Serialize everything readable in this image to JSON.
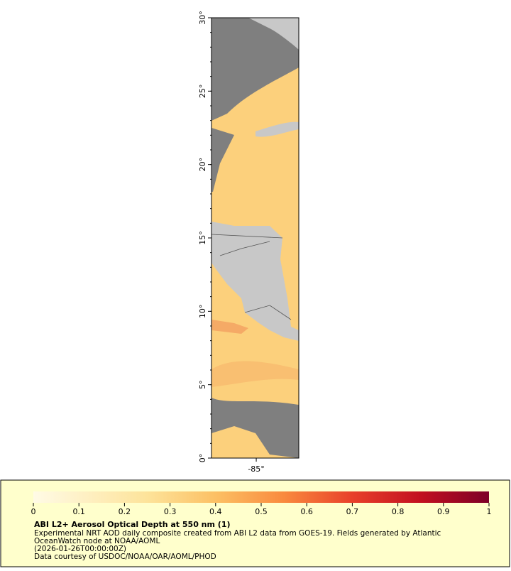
{
  "map": {
    "ylim": [
      0,
      30
    ],
    "yticks": [
      {
        "value": 0,
        "label": "0°"
      },
      {
        "value": 5,
        "label": "5°"
      },
      {
        "value": 10,
        "label": "10°"
      },
      {
        "value": 15,
        "label": "15°"
      },
      {
        "value": 20,
        "label": "20°"
      },
      {
        "value": 25,
        "label": "25°"
      },
      {
        "value": 30,
        "label": "30°"
      }
    ],
    "xlim": [
      -88.05,
      -82.1
    ],
    "xticks": [
      {
        "value": -85,
        "label": "-85°"
      }
    ]
  },
  "legend": {
    "colorbar_lim": [
      0,
      1
    ],
    "colorbar_ticks": [
      0,
      0.1,
      0.2,
      0.3,
      0.4,
      0.5,
      0.6,
      0.7,
      0.8,
      0.9,
      1
    ],
    "title": "ABI L2+ Aerosol Optical Depth at 550 nm (1)",
    "lines": [
      "Experimental NRT AOD daily composite created from ABI L2 data from GOES-19. Fields generated by Atlantic",
      "OceanWatch node at NOAA/AOML",
      "(2026-01-26T00:00:00Z)",
      "Data courtesy of USDOC/NOAA/OAR/AOML/PHOD"
    ]
  }
}
